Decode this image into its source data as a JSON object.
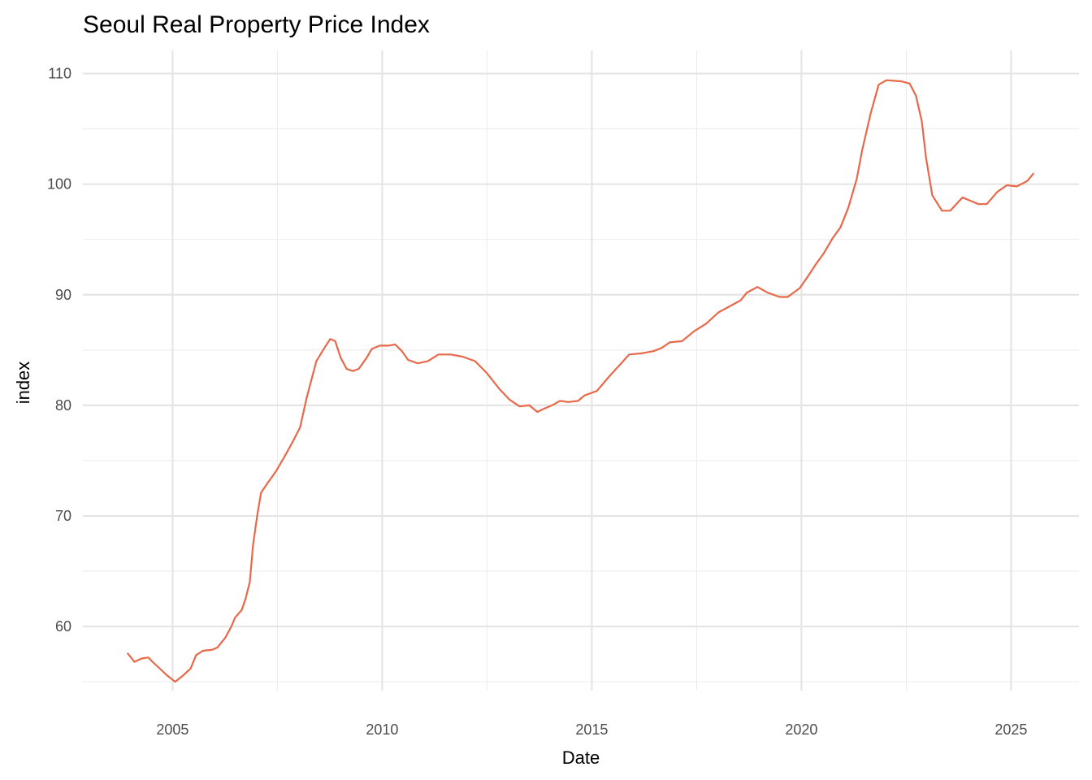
{
  "chart_data": {
    "type": "line",
    "title": "Seoul Real Property Price Index",
    "xlabel": "Date",
    "ylabel": "index",
    "xlim": [
      2002.86,
      2026.62
    ],
    "ylim": [
      54.2,
      112.1
    ],
    "x_ticks": [
      2005,
      2010,
      2015,
      2020,
      2025
    ],
    "x_tick_labels": [
      "2005",
      "2010",
      "2015",
      "2020",
      "2025"
    ],
    "y_ticks": [
      60,
      70,
      80,
      90,
      100,
      110
    ],
    "y_tick_labels": [
      "60",
      "70",
      "80",
      "90",
      "100",
      "110"
    ],
    "grid": true,
    "legend": "none",
    "line_color": "#E8684A",
    "series": [
      {
        "name": "index",
        "x": [
          2003.92,
          2004.09,
          2004.26,
          2004.42,
          2004.55,
          2004.75,
          2004.86,
          2005.06,
          2005.23,
          2005.43,
          2005.56,
          2005.72,
          2005.95,
          2006.07,
          2006.26,
          2006.4,
          2006.49,
          2006.65,
          2006.74,
          2006.84,
          2006.92,
          2007.02,
          2007.11,
          2007.27,
          2007.46,
          2007.66,
          2007.85,
          2008.04,
          2008.2,
          2008.43,
          2008.59,
          2008.76,
          2008.88,
          2009.01,
          2009.15,
          2009.3,
          2009.44,
          2009.63,
          2009.75,
          2009.94,
          2010.14,
          2010.31,
          2010.47,
          2010.62,
          2010.85,
          2011.09,
          2011.34,
          2011.63,
          2011.92,
          2012.21,
          2012.5,
          2012.79,
          2013.04,
          2013.28,
          2013.51,
          2013.7,
          2013.86,
          2014.05,
          2014.24,
          2014.44,
          2014.67,
          2014.83,
          2015.12,
          2015.41,
          2015.7,
          2015.89,
          2016.18,
          2016.47,
          2016.67,
          2016.86,
          2017.15,
          2017.44,
          2017.73,
          2018.02,
          2018.31,
          2018.55,
          2018.7,
          2018.95,
          2019.19,
          2019.48,
          2019.67,
          2019.96,
          2020.16,
          2020.35,
          2020.54,
          2020.74,
          2020.93,
          2021.12,
          2021.32,
          2021.45,
          2021.65,
          2021.84,
          2022.03,
          2022.38,
          2022.58,
          2022.73,
          2022.87,
          2022.97,
          2023.12,
          2023.35,
          2023.55,
          2023.84,
          2024.03,
          2024.22,
          2024.42,
          2024.67,
          2024.9,
          2025.14,
          2025.29,
          2025.39,
          2025.54
        ],
        "y": [
          57.6,
          56.8,
          57.1,
          57.2,
          56.7,
          56.0,
          55.6,
          55.0,
          55.5,
          56.2,
          57.4,
          57.8,
          57.9,
          58.1,
          59.0,
          60.0,
          60.8,
          61.5,
          62.5,
          64.0,
          67.4,
          70.1,
          72.1,
          73.0,
          74.0,
          75.3,
          76.6,
          78.0,
          80.7,
          84.0,
          85.0,
          86.0,
          85.8,
          84.3,
          83.3,
          83.1,
          83.3,
          84.3,
          85.1,
          85.4,
          85.4,
          85.5,
          84.9,
          84.1,
          83.8,
          84.0,
          84.6,
          84.6,
          84.4,
          84.0,
          82.9,
          81.5,
          80.5,
          79.9,
          80.0,
          79.4,
          79.7,
          80.0,
          80.4,
          80.3,
          80.4,
          80.9,
          81.3,
          82.6,
          83.8,
          84.6,
          84.7,
          84.9,
          85.2,
          85.7,
          85.8,
          86.7,
          87.4,
          88.4,
          89.0,
          89.5,
          90.2,
          90.7,
          90.2,
          89.8,
          89.8,
          90.6,
          91.7,
          92.8,
          93.8,
          95.1,
          96.1,
          97.9,
          100.5,
          103.1,
          106.4,
          109.0,
          109.4,
          109.3,
          109.1,
          108.0,
          105.7,
          102.4,
          99.0,
          97.6,
          97.6,
          98.8,
          98.5,
          98.2,
          98.2,
          99.3,
          99.9,
          99.8,
          100.1,
          100.3,
          101.0
        ]
      }
    ]
  }
}
